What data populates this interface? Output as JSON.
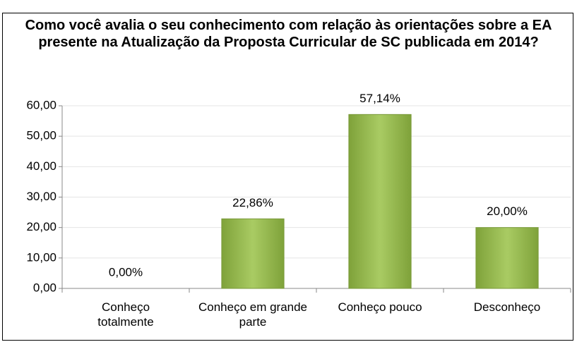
{
  "chart_data": {
    "type": "bar",
    "title": "Como você avalia o seu conhecimento com relação às orientações sobre a EA presente na Atualização da Proposta Curricular de SC publicada em 2014?",
    "categories": [
      "Conheço totalmente",
      "Conheço em grande parte",
      "Conheço pouco",
      "Desconheço"
    ],
    "values": [
      0,
      22.86,
      57.14,
      20
    ],
    "value_labels": [
      "0,00%",
      "22,86%",
      "57,14%",
      "20,00%"
    ],
    "color": "#9bbb59",
    "ylim": [
      0,
      60
    ],
    "yticks": [
      {
        "value": 0,
        "label": "0,00"
      },
      {
        "value": 10,
        "label": "10,00"
      },
      {
        "value": 20,
        "label": "20,00"
      },
      {
        "value": 30,
        "label": "30,00"
      },
      {
        "value": 40,
        "label": "40,00"
      },
      {
        "value": 50,
        "label": "50,00"
      },
      {
        "value": 60,
        "label": "60,00"
      }
    ],
    "grid": true
  }
}
